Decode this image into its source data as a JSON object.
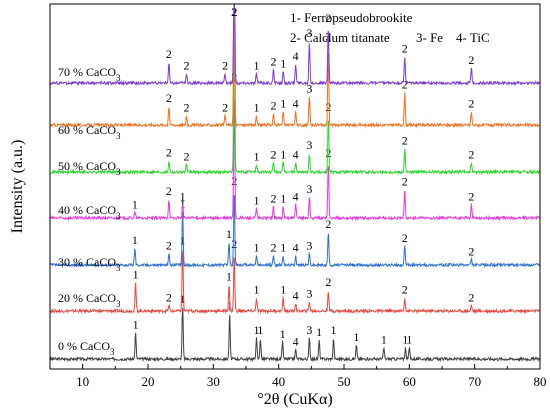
{
  "chart_data": {
    "type": "line",
    "xlabel": "°2θ (CuKα)",
    "ylabel": "Intensity (a.u.)",
    "xlim": [
      5,
      80
    ],
    "x_ticks": [
      "10",
      "20",
      "30",
      "40",
      "50",
      "60",
      "70",
      "80"
    ],
    "legend_entries": [
      "1- Ferropseudobrookite",
      "2- Calcium titanate",
      "3- Fe",
      "4- TiC"
    ],
    "legend_placement": "top-right",
    "grid": false,
    "series": [
      {
        "name": "0 % CaCO3",
        "color": "#404040",
        "peaks": [
          {
            "x": 18.1,
            "h": 0.28,
            "label": "1"
          },
          {
            "x": 25.3,
            "h": 0.55,
            "label": "1"
          },
          {
            "x": 32.5,
            "h": 0.48,
            "label": "1"
          },
          {
            "x": 36.6,
            "h": 0.22,
            "label": "1"
          },
          {
            "x": 37.2,
            "h": 0.22,
            "label": "1"
          },
          {
            "x": 40.6,
            "h": 0.18,
            "label": "1"
          },
          {
            "x": 42.6,
            "h": 0.1,
            "label": "4"
          },
          {
            "x": 44.7,
            "h": 0.22,
            "label": "3"
          },
          {
            "x": 46.2,
            "h": 0.2,
            "label": "1"
          },
          {
            "x": 48.4,
            "h": 0.22,
            "label": "1"
          },
          {
            "x": 51.9,
            "h": 0.15,
            "label": "1"
          },
          {
            "x": 56.1,
            "h": 0.12,
            "label": "1"
          },
          {
            "x": 59.4,
            "h": 0.12,
            "label": "1"
          },
          {
            "x": 60.0,
            "h": 0.12,
            "label": "1"
          }
        ]
      },
      {
        "name": "20 % CaCO3",
        "color": "#e8473f",
        "peaks": [
          {
            "x": 18.1,
            "h": 0.3,
            "label": "1"
          },
          {
            "x": 23.2,
            "h": 0.06,
            "label": "2"
          },
          {
            "x": 25.3,
            "h": 0.66,
            "label": "1"
          },
          {
            "x": 32.4,
            "h": 0.28,
            "label": "1"
          },
          {
            "x": 33.2,
            "h": 0.62,
            "label": "2"
          },
          {
            "x": 36.6,
            "h": 0.14,
            "label": "1"
          },
          {
            "x": 40.7,
            "h": 0.14,
            "label": "1"
          },
          {
            "x": 42.6,
            "h": 0.08,
            "label": "4"
          },
          {
            "x": 44.7,
            "h": 0.1,
            "label": "3"
          },
          {
            "x": 47.6,
            "h": 0.22,
            "label": "2"
          },
          {
            "x": 59.3,
            "h": 0.14,
            "label": "2"
          },
          {
            "x": 69.5,
            "h": 0.06,
            "label": "2"
          }
        ]
      },
      {
        "name": "30 % CaCO3",
        "color": "#2f6fd6",
        "peaks": [
          {
            "x": 18.0,
            "h": 0.18,
            "label": "1"
          },
          {
            "x": 23.2,
            "h": 0.12,
            "label": "2"
          },
          {
            "x": 25.3,
            "h": 0.56,
            "label": "1"
          },
          {
            "x": 32.4,
            "h": 0.24,
            "label": "1"
          },
          {
            "x": 33.2,
            "h": 0.8,
            "label": "2"
          },
          {
            "x": 36.6,
            "h": 0.1,
            "label": "1"
          },
          {
            "x": 39.2,
            "h": 0.1,
            "label": "2"
          },
          {
            "x": 40.7,
            "h": 0.1,
            "label": "1"
          },
          {
            "x": 42.6,
            "h": 0.1,
            "label": "4"
          },
          {
            "x": 44.7,
            "h": 0.12,
            "label": "3"
          },
          {
            "x": 47.6,
            "h": 0.35,
            "label": "2"
          },
          {
            "x": 59.3,
            "h": 0.2,
            "label": "2"
          },
          {
            "x": 69.5,
            "h": 0.06,
            "label": "2"
          }
        ]
      },
      {
        "name": "40 % CaCO3",
        "color": "#e03adf",
        "peaks": [
          {
            "x": 18.0,
            "h": 0.06,
            "label": "1"
          },
          {
            "x": 23.2,
            "h": 0.2,
            "label": "2"
          },
          {
            "x": 25.3,
            "h": 0.14,
            "label": "1"
          },
          {
            "x": 33.2,
            "h": 1.4,
            "label": "2"
          },
          {
            "x": 36.6,
            "h": 0.1,
            "label": "1"
          },
          {
            "x": 39.2,
            "h": 0.12,
            "label": "2"
          },
          {
            "x": 40.7,
            "h": 0.12,
            "label": "1"
          },
          {
            "x": 42.6,
            "h": 0.14,
            "label": "4"
          },
          {
            "x": 44.7,
            "h": 0.22,
            "label": "3"
          },
          {
            "x": 47.6,
            "h": 0.6,
            "label": "2"
          },
          {
            "x": 59.3,
            "h": 0.3,
            "label": "2"
          },
          {
            "x": 69.5,
            "h": 0.14,
            "label": "2"
          }
        ]
      },
      {
        "name": "50 % CaCO3",
        "color": "#2fd22f",
        "peaks": [
          {
            "x": 23.2,
            "h": 0.12,
            "label": "2"
          },
          {
            "x": 25.9,
            "h": 0.08,
            "label": "2"
          },
          {
            "x": 33.2,
            "h": 1.7,
            "label": "2"
          },
          {
            "x": 36.6,
            "h": 0.08,
            "label": "1"
          },
          {
            "x": 39.2,
            "h": 0.1,
            "label": "2"
          },
          {
            "x": 40.7,
            "h": 0.1,
            "label": "1"
          },
          {
            "x": 42.6,
            "h": 0.1,
            "label": "4"
          },
          {
            "x": 44.7,
            "h": 0.2,
            "label": "3"
          },
          {
            "x": 47.6,
            "h": 0.6,
            "label": "2"
          },
          {
            "x": 59.3,
            "h": 0.25,
            "label": "2"
          },
          {
            "x": 69.5,
            "h": 0.1,
            "label": "2"
          }
        ]
      },
      {
        "name": "60 % CaCO3",
        "color": "#f07020",
        "peaks": [
          {
            "x": 23.2,
            "h": 0.2,
            "label": "2"
          },
          {
            "x": 25.9,
            "h": 0.1,
            "label": "2"
          },
          {
            "x": 31.8,
            "h": 0.1,
            "label": "2"
          },
          {
            "x": 33.2,
            "h": 1.75,
            "label": "2"
          },
          {
            "x": 36.6,
            "h": 0.1,
            "label": "1"
          },
          {
            "x": 39.2,
            "h": 0.12,
            "label": "2"
          },
          {
            "x": 40.7,
            "h": 0.14,
            "label": "1"
          },
          {
            "x": 42.6,
            "h": 0.14,
            "label": "4"
          },
          {
            "x": 44.7,
            "h": 0.3,
            "label": "3"
          },
          {
            "x": 47.6,
            "h": 0.85,
            "label": "2"
          },
          {
            "x": 59.3,
            "h": 0.34,
            "label": "2"
          },
          {
            "x": 69.5,
            "h": 0.14,
            "label": "2"
          }
        ]
      },
      {
        "name": "70 % CaCO3",
        "color": "#7c3ad6",
        "peaks": [
          {
            "x": 23.2,
            "h": 0.22,
            "label": "2"
          },
          {
            "x": 25.9,
            "h": 0.1,
            "label": "2"
          },
          {
            "x": 31.8,
            "h": 0.1,
            "label": "2"
          },
          {
            "x": 33.2,
            "h": 1.7,
            "label": "2"
          },
          {
            "x": 36.6,
            "h": 0.1,
            "label": "1"
          },
          {
            "x": 39.2,
            "h": 0.14,
            "label": "2"
          },
          {
            "x": 40.7,
            "h": 0.12,
            "label": "1"
          },
          {
            "x": 42.6,
            "h": 0.2,
            "label": "4"
          },
          {
            "x": 44.7,
            "h": 0.44,
            "label": "3"
          },
          {
            "x": 47.6,
            "h": 0.6,
            "label": "2"
          },
          {
            "x": 59.3,
            "h": 0.28,
            "label": "2"
          },
          {
            "x": 69.5,
            "h": 0.16,
            "label": "2"
          }
        ]
      }
    ]
  }
}
